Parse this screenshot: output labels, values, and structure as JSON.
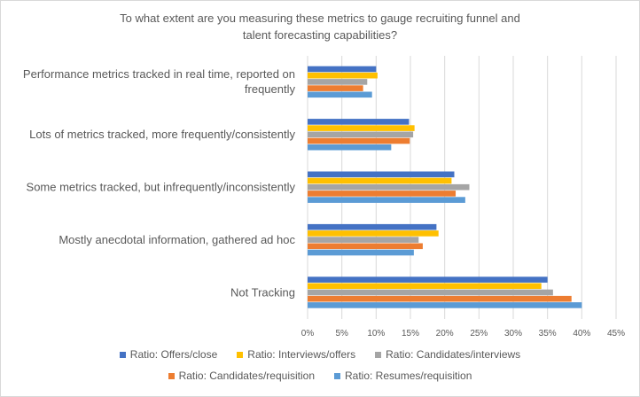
{
  "chart_data": {
    "type": "bar",
    "orientation": "horizontal",
    "title_lines": [
      "To what extent are you measuring these metrics to gauge recruiting funnel and",
      "talent forecasting capabilities?"
    ],
    "categories": [
      "Performance metrics tracked in real time, reported on frequently",
      "Lots of metrics tracked, more frequently/consistently",
      "Some metrics tracked, but infrequently/inconsistently",
      "Mostly anecdotal information, gathered ad hoc",
      "Not Tracking"
    ],
    "category_label_lines": [
      [
        "Performance metrics tracked in real time, reported on",
        "frequently"
      ],
      [
        "Lots of metrics tracked, more frequently/consistently"
      ],
      [
        "Some metrics tracked, but infrequently/inconsistently"
      ],
      [
        "Mostly anecdotal information, gathered ad hoc"
      ],
      [
        "Not Tracking"
      ]
    ],
    "series": [
      {
        "name": "Ratio: Offers/close",
        "color": "#4472C4",
        "values": [
          10,
          14.8,
          21.4,
          18.8,
          35
        ]
      },
      {
        "name": "Ratio: Interviews/offers",
        "color": "#FFC000",
        "values": [
          10.2,
          15.6,
          21,
          19.1,
          34.1
        ]
      },
      {
        "name": "Ratio: Candidates/interviews",
        "color": "#A5A5A5",
        "values": [
          8.7,
          15.4,
          23.6,
          16.2,
          35.8
        ]
      },
      {
        "name": "Ratio: Candidates/requisition",
        "color": "#ED7D31",
        "values": [
          8.1,
          14.9,
          21.6,
          16.8,
          38.5
        ]
      },
      {
        "name": "Ratio: Resumes/requisition",
        "color": "#5B9BD5",
        "values": [
          9.4,
          12.2,
          23,
          15.5,
          40
        ]
      }
    ],
    "x_ticks": [
      "0%",
      "5%",
      "10%",
      "15%",
      "20%",
      "25%",
      "30%",
      "35%",
      "40%",
      "45%"
    ],
    "xlim": [
      0,
      45
    ],
    "legend_position": "bottom",
    "grid": true
  }
}
